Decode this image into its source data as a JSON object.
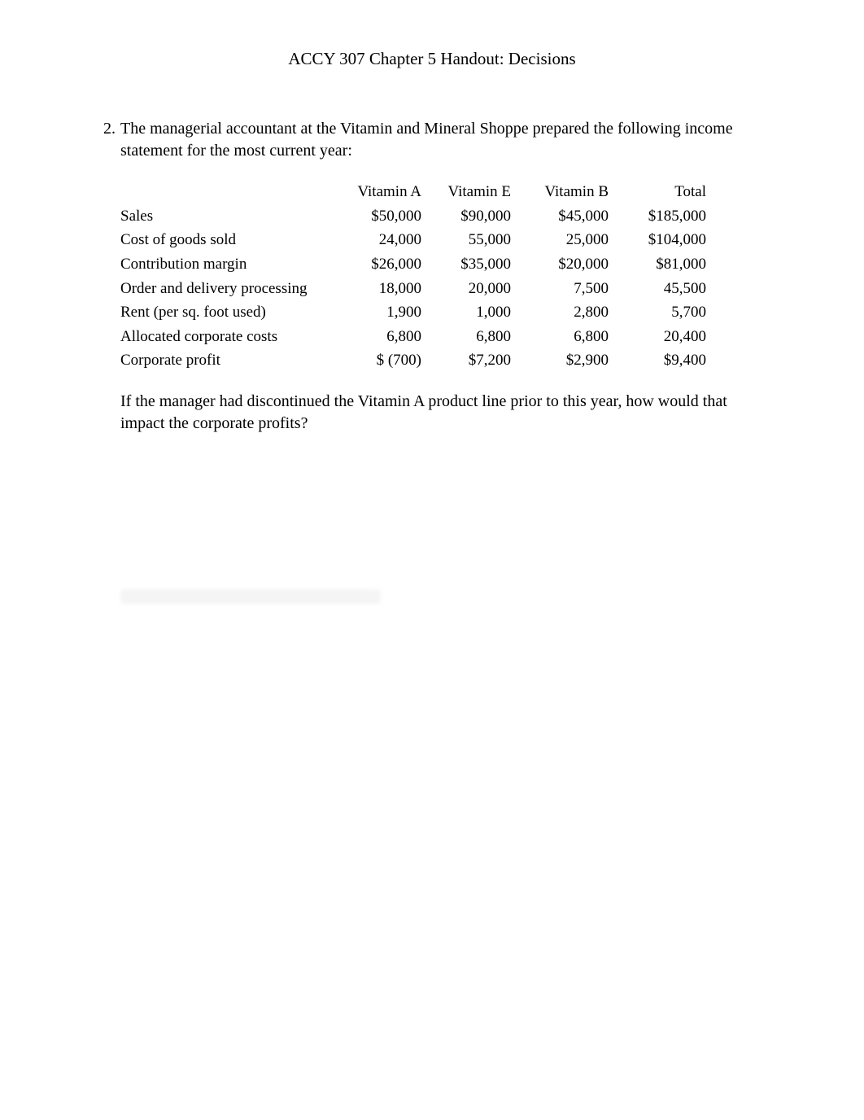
{
  "title": "ACCY 307   Chapter 5 Handout:   Decisions",
  "question": {
    "number": "2.",
    "intro": "The managerial accountant at the Vitamin and Mineral Shoppe prepared the following income statement for the most current year:",
    "table": {
      "headers": {
        "label": "",
        "col_a": "Vitamin A",
        "col_e": "Vitamin E",
        "col_b": "Vitamin B",
        "col_t": "Total"
      },
      "rows": [
        {
          "label": "Sales",
          "a": "$50,000",
          "e": "$90,000",
          "b": "$45,000",
          "t": "$185,000"
        },
        {
          "label": "Cost of goods sold",
          "a": "24,000",
          "e": "55,000",
          "b": "25,000",
          "t": "$104,000"
        },
        {
          "label": "Contribution margin",
          "a": "$26,000",
          "e": "$35,000",
          "b": "$20,000",
          "t": "$81,000"
        },
        {
          "label": "Order and delivery processing",
          "a": "18,000",
          "e": "20,000",
          "b": "7,500",
          "t": "45,500"
        },
        {
          "label": "Rent (per sq. foot used)",
          "a": "1,900",
          "e": "1,000",
          "b": "2,800",
          "t": "5,700"
        },
        {
          "label": "Allocated corporate costs",
          "a": "6,800",
          "e": "6,800",
          "b": "6,800",
          "t": "20,400"
        },
        {
          "label": "Corporate profit",
          "a": "$ (700)",
          "e": "$7,200",
          "b": "$2,900",
          "t": "$9,400"
        }
      ]
    },
    "followup": "If the manager had discontinued the Vitamin A product line prior to this year, how would that impact the corporate profits?"
  }
}
